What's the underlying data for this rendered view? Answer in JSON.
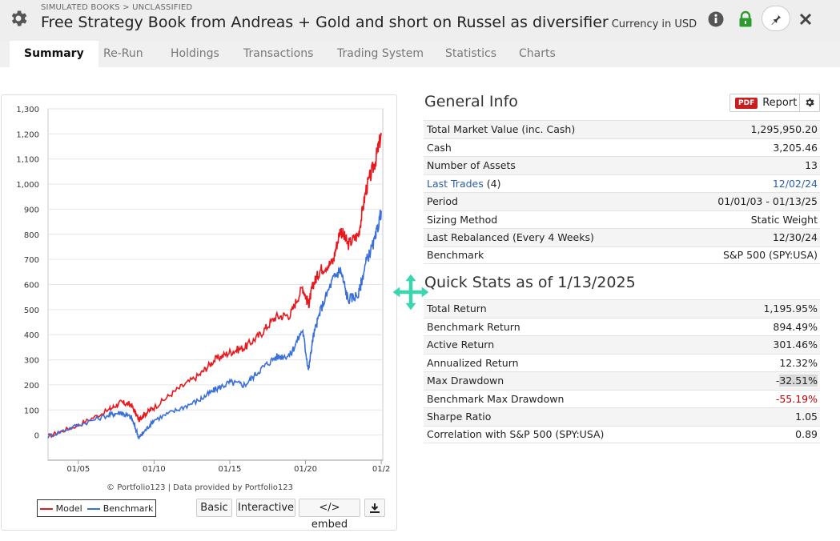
{
  "header": {
    "breadcrumb": "SIMULATED BOOKS > UNCLASSIFIED",
    "title": "Free Strategy Book from Andreas + Gold and short on Russel as diversifier",
    "currency": "Currency in USD",
    "icons": [
      "gear-icon",
      "info-icon",
      "lock-icon",
      "pin-icon",
      "close-icon"
    ]
  },
  "tabs": [
    {
      "label": "Summary",
      "active": true
    },
    {
      "label": "Re-Run"
    },
    {
      "label": "Holdings"
    },
    {
      "label": "Transactions"
    },
    {
      "label": "Trading System"
    },
    {
      "label": "Statistics"
    },
    {
      "label": "Charts"
    }
  ],
  "chart": {
    "credit": "© Portfolio123 | Data provided by Portfolio123",
    "legend": {
      "model": "Model",
      "benchmark": "Benchmark"
    },
    "buttons": {
      "basic": "Basic",
      "interactive": "Interactive",
      "embed": "</> embed"
    }
  },
  "chart_data": {
    "type": "line",
    "title": "",
    "xlabel": "",
    "ylabel": "",
    "ylim": [
      -100,
      1300
    ],
    "yticks": [
      "1,300",
      "1,200",
      "1,100",
      "1,000",
      "900",
      "800",
      "700",
      "600",
      "500",
      "400",
      "300",
      "200",
      "100",
      "0"
    ],
    "xticks": [
      "01/05",
      "01/10",
      "01/15",
      "01/20",
      "01/2"
    ],
    "x": [
      2003.0,
      2005.0,
      2007.0,
      2007.8,
      2008.5,
      2009.0,
      2009.3,
      2010.0,
      2011.5,
      2013.0,
      2014.0,
      2015.0,
      2016.0,
      2017.0,
      2018.0,
      2019.0,
      2019.8,
      2020.2,
      2020.5,
      2021.0,
      2021.8,
      2022.3,
      2022.8,
      2023.5,
      2024.0,
      2024.6,
      2025.0
    ],
    "series": [
      {
        "name": "Model",
        "color": "#e8191e",
        "values": [
          -5,
          40,
          100,
          130,
          120,
          60,
          80,
          110,
          180,
          240,
          300,
          330,
          350,
          400,
          470,
          480,
          590,
          520,
          600,
          660,
          690,
          820,
          760,
          800,
          980,
          1090,
          1196
        ]
      },
      {
        "name": "Benchmark",
        "color": "#3a6fd8",
        "values": [
          -5,
          40,
          80,
          90,
          70,
          -10,
          10,
          60,
          100,
          140,
          180,
          210,
          200,
          260,
          310,
          320,
          420,
          260,
          390,
          500,
          620,
          660,
          540,
          560,
          690,
          780,
          894
        ]
      }
    ]
  },
  "general_info": {
    "title": "General Info",
    "report": {
      "pdf": "PDF",
      "label": "Report"
    },
    "rows": [
      {
        "label": "Total Market Value (inc. Cash)",
        "value": "1,295,950.20"
      },
      {
        "label": "Cash",
        "value": "3,205.46"
      },
      {
        "label": "Number of Assets",
        "value": "13"
      },
      {
        "label": "Last Trades",
        "count": "(4)",
        "value": "12/02/24"
      },
      {
        "label": "Period",
        "value": "01/01/03 - 01/13/25"
      },
      {
        "label": "Sizing Method",
        "value": "Static Weight"
      },
      {
        "label": "Last Rebalanced (Every 4 Weeks)",
        "value": "12/30/24"
      },
      {
        "label": "Benchmark",
        "value": "S&P 500 (SPY:USA)"
      }
    ]
  },
  "quick_stats": {
    "title": "Quick Stats as of 1/13/2025",
    "rows": [
      {
        "label": "Total Return",
        "value": "1,195.95%"
      },
      {
        "label": "Benchmark Return",
        "value": "894.49%"
      },
      {
        "label": "Active Return",
        "value": "301.46%"
      },
      {
        "label": "Annualized Return",
        "value": "12.32%"
      },
      {
        "label": "Max Drawdown",
        "value_sign": "-",
        "value": "32.51%"
      },
      {
        "label": "Benchmark Max Drawdown",
        "value": "-55.19%"
      },
      {
        "label": "Sharpe Ratio",
        "value": "1.05"
      },
      {
        "label": "Correlation with S&P 500 (SPY:USA)",
        "value": "0.89"
      }
    ]
  }
}
